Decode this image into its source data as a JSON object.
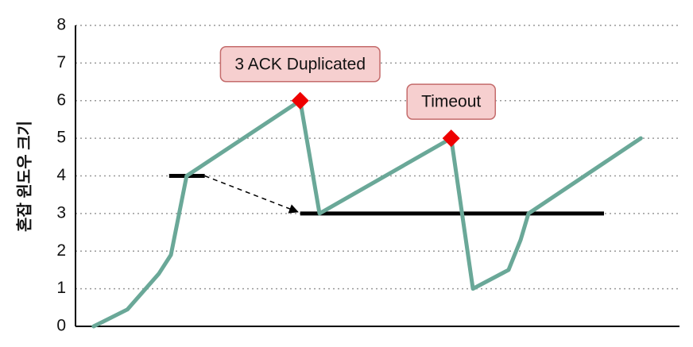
{
  "chart_data": {
    "type": "line",
    "y_label": "혼잡 윈도우 크기",
    "ylim": [
      0,
      8
    ],
    "yticks": [
      0,
      1,
      2,
      3,
      4,
      5,
      6,
      7,
      8
    ],
    "xlim": [
      0,
      100
    ],
    "grid": true,
    "series": [
      {
        "color": "#6aa898",
        "x": [
          3.0,
          8.6,
          13.8,
          15.8,
          18.4,
          37.2,
          40.4,
          62.2,
          65.8,
          71.7,
          73.7,
          75.0,
          93.6
        ],
        "values": [
          0,
          0.45,
          1.4,
          1.9,
          4.0,
          6.0,
          3.0,
          5.0,
          1.0,
          1.5,
          2.3,
          3.0,
          5.0
        ]
      }
    ],
    "markers": {
      "color": "#ee0000",
      "x": [
        37.2,
        62.2
      ],
      "values": [
        6,
        5
      ]
    },
    "thresholds": [
      {
        "color": "#000000",
        "x": [
          15.5,
          21.4
        ],
        "values": [
          4,
          4
        ]
      },
      {
        "color": "#000000",
        "x": [
          37.2,
          87.5
        ],
        "values": [
          3,
          3
        ]
      }
    ],
    "annotations": [
      "3 ACK Duplicated",
      "Timeout"
    ]
  }
}
